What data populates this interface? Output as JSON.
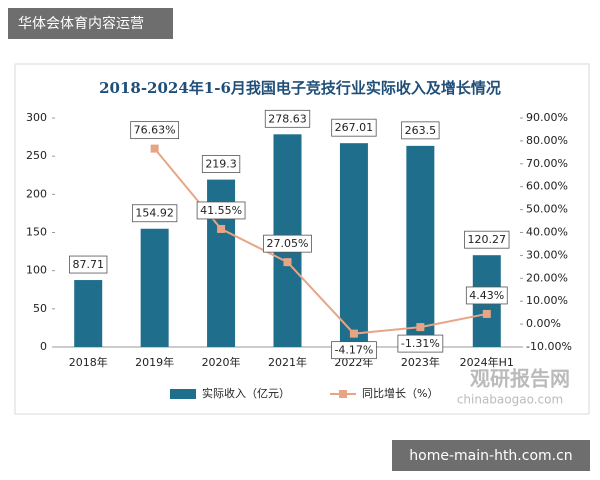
{
  "banner": "华体会体育内容运营",
  "footer": "home-main-hth.com.cn",
  "watermark": {
    "name": "观研报告网",
    "url": "chinabaogao.com"
  },
  "chart_data": {
    "type": "bar",
    "title": "2018-2024年1-6月我国电子竞技行业实际收入及增长情况",
    "categories": [
      "2018年",
      "2019年",
      "2020年",
      "2021年",
      "2022年",
      "2023年",
      "2024年H1"
    ],
    "series": [
      {
        "name": "实际收入（亿元）",
        "type": "bar",
        "color": "#1f6e8c",
        "values": [
          87.71,
          154.92,
          219.3,
          278.63,
          267.01,
          263.5,
          120.27
        ]
      },
      {
        "name": "同比增长（%）",
        "type": "line",
        "axis": "y2",
        "color": "#e8a585",
        "values": [
          null,
          76.63,
          41.55,
          27.05,
          -4.17,
          -1.31,
          4.43
        ],
        "value_labels": [
          null,
          "76.63%",
          "41.55%",
          "27.05%",
          "-4.17%",
          "-1.31%",
          "4.43%"
        ]
      }
    ],
    "ylim": [
      0,
      300
    ],
    "yticks": [
      0,
      50,
      100,
      150,
      200,
      250,
      300
    ],
    "y2lim": [
      -10,
      90
    ],
    "y2ticks": [
      {
        "value": -10,
        "label": "-10.00%"
      },
      {
        "value": 0,
        "label": "0.00%"
      },
      {
        "value": 10,
        "label": "10.00%"
      },
      {
        "value": 20,
        "label": "20.00%"
      },
      {
        "value": 30,
        "label": "30.00%"
      },
      {
        "value": 40,
        "label": "40.00%"
      },
      {
        "value": 50,
        "label": "50.00%"
      },
      {
        "value": 60,
        "label": "60.00%"
      },
      {
        "value": 70,
        "label": "70.00%"
      },
      {
        "value": 80,
        "label": "80.00%"
      },
      {
        "value": 90,
        "label": "90.00%"
      }
    ],
    "legend": "bottom"
  }
}
